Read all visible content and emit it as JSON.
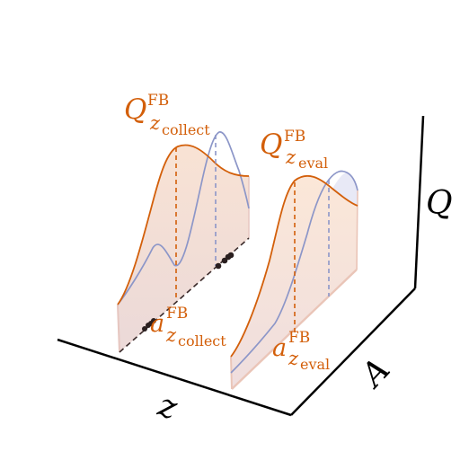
{
  "axes": {
    "z_label": "z",
    "a_label": "A",
    "q_label": "Q"
  },
  "labels": {
    "q_collect": {
      "main": "Q",
      "sup": "FB",
      "sub_var": "z",
      "sub_sub": "collect"
    },
    "q_eval": {
      "main": "Q",
      "sup": "FB",
      "sub_var": "z",
      "sub_sub": "eval"
    },
    "a_collect": {
      "main": "a",
      "sup": "FB",
      "sub_var": "z",
      "sub_sub": "collect"
    },
    "a_eval": {
      "main": "a",
      "sup": "FB",
      "sub_var": "z",
      "sub_sub": "eval"
    }
  },
  "colors": {
    "orange": "#d35f0a",
    "blue": "#8c96c8",
    "axis": "#000000",
    "fill_orange": "#fbe4d3",
    "fill_blue": "#e7e8f5"
  }
}
